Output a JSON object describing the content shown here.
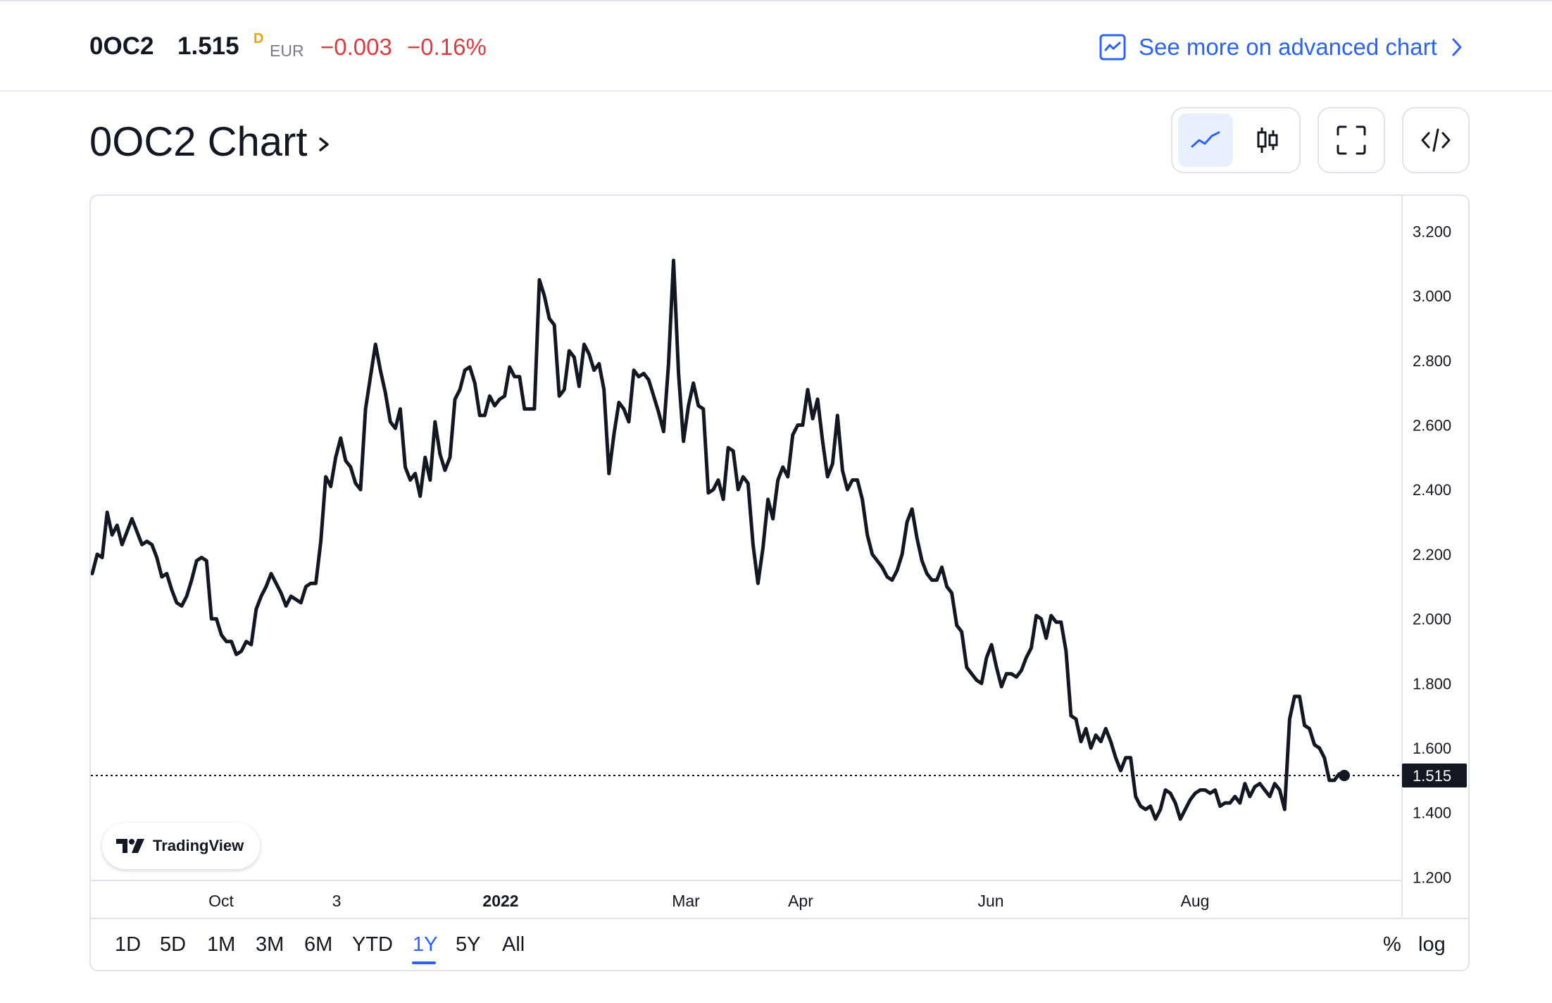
{
  "header": {
    "symbol": "0OC2",
    "price": "1.515",
    "price_flag": "D",
    "currency": "EUR",
    "change": "−0.003",
    "change_pct": "−0.16%",
    "advanced_link": "See more on advanced chart"
  },
  "title": "0OC2 Chart",
  "toolbar": {
    "buttons": [
      "line-chart",
      "candles",
      "fullscreen",
      "embed"
    ],
    "active": "line-chart"
  },
  "branding": "TradingView",
  "ranges": [
    "1D",
    "5D",
    "1M",
    "3M",
    "6M",
    "YTD",
    "1Y",
    "5Y",
    "All"
  ],
  "active_range": "1Y",
  "options": [
    "%",
    "log"
  ],
  "colors": {
    "line": "#131722",
    "accent": "#2962ff",
    "negative": "#e03a3e",
    "price_label_bg": "#131722"
  },
  "chart_data": {
    "type": "line",
    "x_tick_labels": [
      "Oct",
      "3",
      "2022",
      "Mar",
      "Apr",
      "Jun",
      "Aug"
    ],
    "y_tick_labels": [
      "3.200",
      "3.000",
      "2.800",
      "2.600",
      "2.400",
      "2.200",
      "2.000",
      "1.800",
      "1.600",
      "1.400",
      "1.200"
    ],
    "ylim": [
      1.19,
      3.31
    ],
    "last_price": 1.515,
    "last_price_label": "1.515",
    "grid": false,
    "values": [
      2.14,
      2.2,
      2.19,
      2.33,
      2.26,
      2.29,
      2.23,
      2.27,
      2.31,
      2.27,
      2.23,
      2.24,
      2.23,
      2.19,
      2.13,
      2.14,
      2.09,
      2.05,
      2.04,
      2.07,
      2.12,
      2.18,
      2.19,
      2.18,
      2.0,
      2.0,
      1.95,
      1.93,
      1.93,
      1.89,
      1.9,
      1.93,
      1.92,
      2.03,
      2.07,
      2.1,
      2.14,
      2.11,
      2.08,
      2.04,
      2.07,
      2.06,
      2.05,
      2.1,
      2.11,
      2.11,
      2.24,
      2.44,
      2.41,
      2.5,
      2.56,
      2.49,
      2.47,
      2.42,
      2.4,
      2.65,
      2.75,
      2.85,
      2.77,
      2.7,
      2.61,
      2.59,
      2.65,
      2.47,
      2.43,
      2.45,
      2.38,
      2.5,
      2.43,
      2.61,
      2.51,
      2.46,
      2.5,
      2.68,
      2.71,
      2.77,
      2.78,
      2.73,
      2.63,
      2.63,
      2.69,
      2.66,
      2.68,
      2.69,
      2.78,
      2.75,
      2.75,
      2.65,
      2.65,
      2.65,
      3.05,
      3.0,
      2.93,
      2.91,
      2.69,
      2.71,
      2.83,
      2.81,
      2.72,
      2.85,
      2.82,
      2.77,
      2.79,
      2.71,
      2.45,
      2.57,
      2.67,
      2.65,
      2.61,
      2.77,
      2.75,
      2.76,
      2.74,
      2.69,
      2.64,
      2.58,
      2.79,
      3.11,
      2.76,
      2.55,
      2.66,
      2.73,
      2.66,
      2.65,
      2.39,
      2.4,
      2.43,
      2.37,
      2.53,
      2.52,
      2.4,
      2.44,
      2.42,
      2.23,
      2.11,
      2.22,
      2.37,
      2.31,
      2.43,
      2.47,
      2.44,
      2.57,
      2.6,
      2.6,
      2.71,
      2.62,
      2.68,
      2.55,
      2.44,
      2.48,
      2.63,
      2.46,
      2.4,
      2.43,
      2.43,
      2.37,
      2.26,
      2.2,
      2.18,
      2.16,
      2.13,
      2.12,
      2.15,
      2.2,
      2.3,
      2.34,
      2.25,
      2.18,
      2.14,
      2.12,
      2.12,
      2.16,
      2.1,
      2.08,
      1.98,
      1.96,
      1.85,
      1.83,
      1.81,
      1.8,
      1.88,
      1.92,
      1.85,
      1.79,
      1.83,
      1.83,
      1.82,
      1.84,
      1.88,
      1.91,
      2.01,
      2.0,
      1.94,
      2.01,
      1.99,
      1.99,
      1.9,
      1.7,
      1.69,
      1.62,
      1.66,
      1.6,
      1.64,
      1.62,
      1.66,
      1.62,
      1.57,
      1.53,
      1.57,
      1.57,
      1.45,
      1.42,
      1.41,
      1.42,
      1.38,
      1.41,
      1.47,
      1.46,
      1.43,
      1.38,
      1.41,
      1.44,
      1.46,
      1.47,
      1.47,
      1.46,
      1.47,
      1.42,
      1.43,
      1.43,
      1.45,
      1.43,
      1.49,
      1.45,
      1.48,
      1.49,
      1.47,
      1.45,
      1.49,
      1.47,
      1.41,
      1.69,
      1.76,
      1.76,
      1.67,
      1.66,
      1.61,
      1.6,
      1.57,
      1.5,
      1.5,
      1.52,
      1.515
    ]
  }
}
